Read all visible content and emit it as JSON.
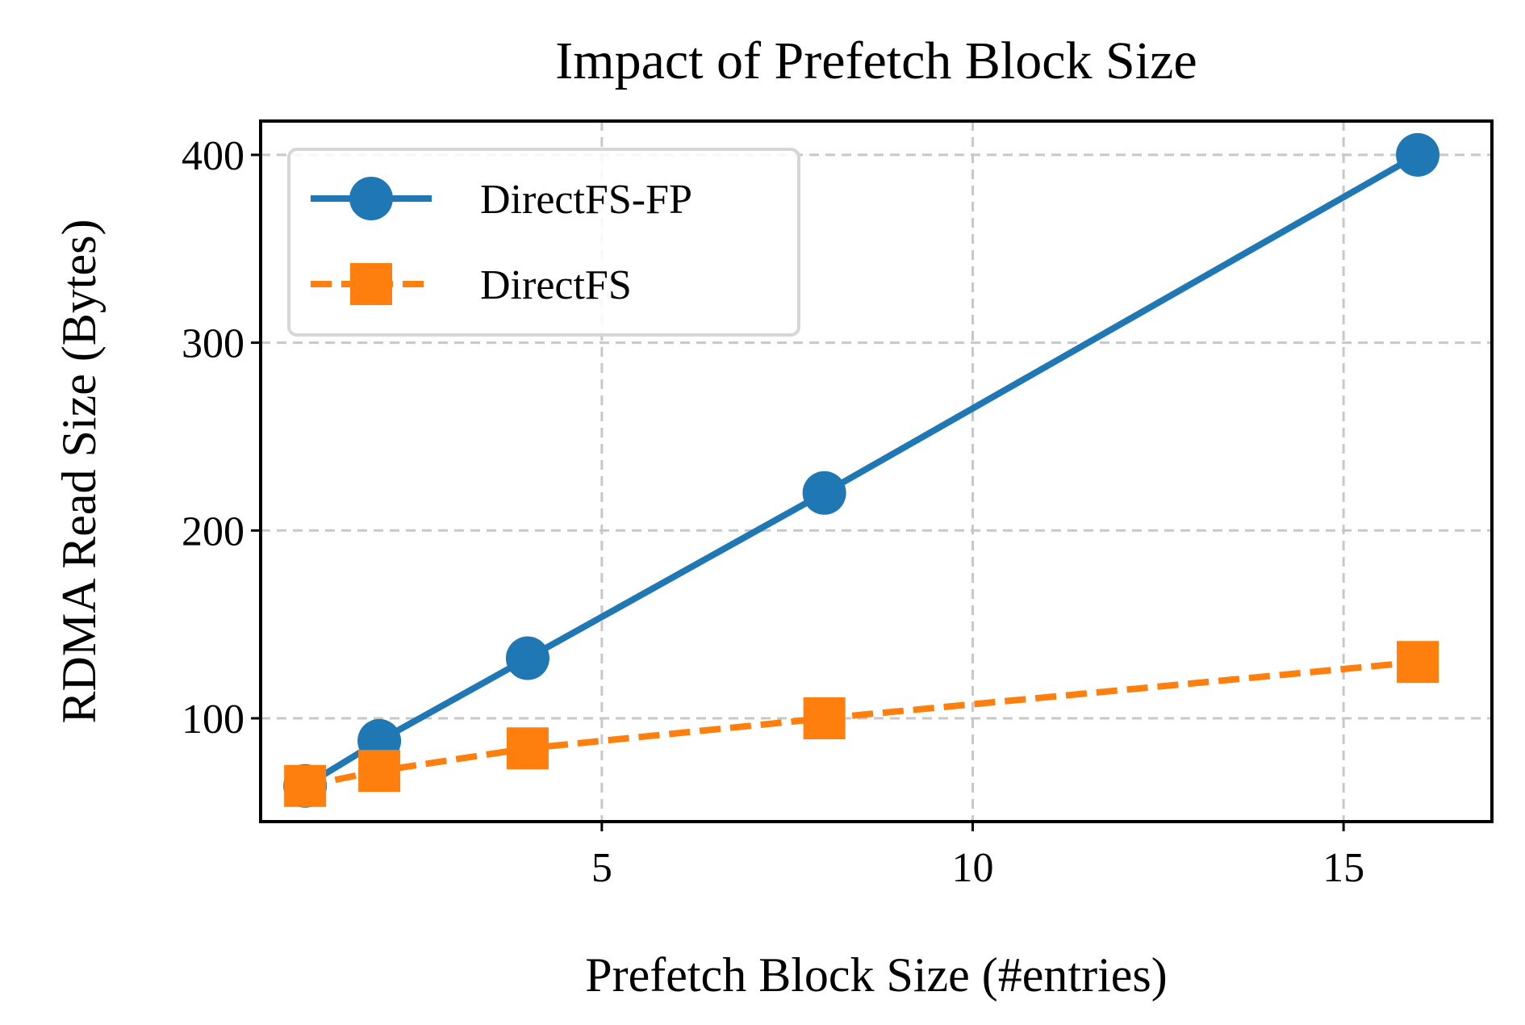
{
  "chart_data": {
    "type": "line",
    "title": "Impact of Prefetch Block Size",
    "xlabel": "Prefetch Block Size (#entries)",
    "ylabel": "RDMA Read Size (Bytes)",
    "xlim": [
      0.4,
      17
    ],
    "ylim": [
      45,
      418
    ],
    "xticks": [
      5,
      10,
      15
    ],
    "yticks": [
      100,
      200,
      300,
      400
    ],
    "grid": true,
    "legend_position": "upper-left",
    "x": [
      1,
      2,
      4,
      8,
      16
    ],
    "series": [
      {
        "name": "DirectFS-FP",
        "values": [
          64,
          88,
          132,
          220,
          400
        ],
        "color": "#1f77b4",
        "marker": "circle",
        "line_style": "solid"
      },
      {
        "name": "DirectFS",
        "values": [
          64,
          72,
          84,
          100,
          130
        ],
        "color": "#ff7f0e",
        "marker": "square",
        "line_style": "dashed"
      }
    ]
  }
}
